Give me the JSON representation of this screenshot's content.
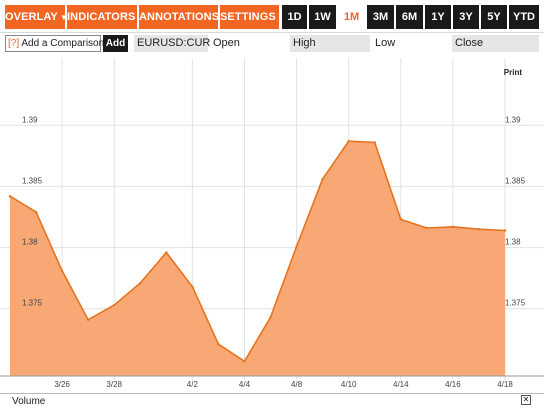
{
  "toolbar": {
    "menus": [
      {
        "label": "OVERLAY"
      },
      {
        "label": "INDICATORS"
      },
      {
        "label": "ANNOTATIONS"
      },
      {
        "label": "SETTINGS"
      }
    ],
    "ranges": [
      {
        "label": "1D",
        "active": false
      },
      {
        "label": "1W",
        "active": false
      },
      {
        "label": "1M",
        "active": true
      },
      {
        "label": "3M",
        "active": false
      },
      {
        "label": "6M",
        "active": false
      },
      {
        "label": "1Y",
        "active": false
      },
      {
        "label": "3Y",
        "active": false
      },
      {
        "label": "5Y",
        "active": false
      },
      {
        "label": "YTD",
        "active": false
      }
    ],
    "menu_color": "#f26522",
    "range_color": "#1a1a1a"
  },
  "compare": {
    "help": "[?]",
    "label": "Add a Comparison",
    "add_label": "Add"
  },
  "quote": {
    "symbol": "EURUSD:CUR",
    "open_label": "Open",
    "high_label": "High",
    "low_label": "Low",
    "close_label": "Close"
  },
  "print_label": "Print",
  "volume_label": "Volume",
  "volume_close": "✕",
  "chart_data": {
    "type": "area",
    "color": "#f7a875",
    "line_color": "#e8731e",
    "x_tick_labels": [
      "3/26",
      "3/28",
      "4/2",
      "4/4",
      "4/8",
      "4/10",
      "4/14",
      "4/16",
      "4/18"
    ],
    "y_tick_labels": [
      "1.375",
      "1.38",
      "1.385",
      "1.39"
    ],
    "y_ticks": [
      1.375,
      1.38,
      1.385,
      1.39
    ],
    "ylim": [
      1.3695,
      1.3955
    ],
    "grid": true,
    "points": [
      {
        "x": "3/24",
        "y": 1.3842
      },
      {
        "x": "3/25",
        "y": 1.3829
      },
      {
        "x": "3/26",
        "y": 1.3781
      },
      {
        "x": "3/27",
        "y": 1.3741
      },
      {
        "x": "3/28",
        "y": 1.3753
      },
      {
        "x": "3/31",
        "y": 1.3771
      },
      {
        "x": "4/1",
        "y": 1.3796
      },
      {
        "x": "4/2",
        "y": 1.3768
      },
      {
        "x": "4/3",
        "y": 1.3721
      },
      {
        "x": "4/4",
        "y": 1.3707
      },
      {
        "x": "4/7",
        "y": 1.3743
      },
      {
        "x": "4/8",
        "y": 1.3801
      },
      {
        "x": "4/9",
        "y": 1.3856
      },
      {
        "x": "4/10",
        "y": 1.3887
      },
      {
        "x": "4/11",
        "y": 1.3886
      },
      {
        "x": "4/14",
        "y": 1.3823
      },
      {
        "x": "4/15",
        "y": 1.3816
      },
      {
        "x": "4/16",
        "y": 1.3817
      },
      {
        "x": "4/17",
        "y": 1.3815
      },
      {
        "x": "4/18",
        "y": 1.3814
      }
    ]
  }
}
